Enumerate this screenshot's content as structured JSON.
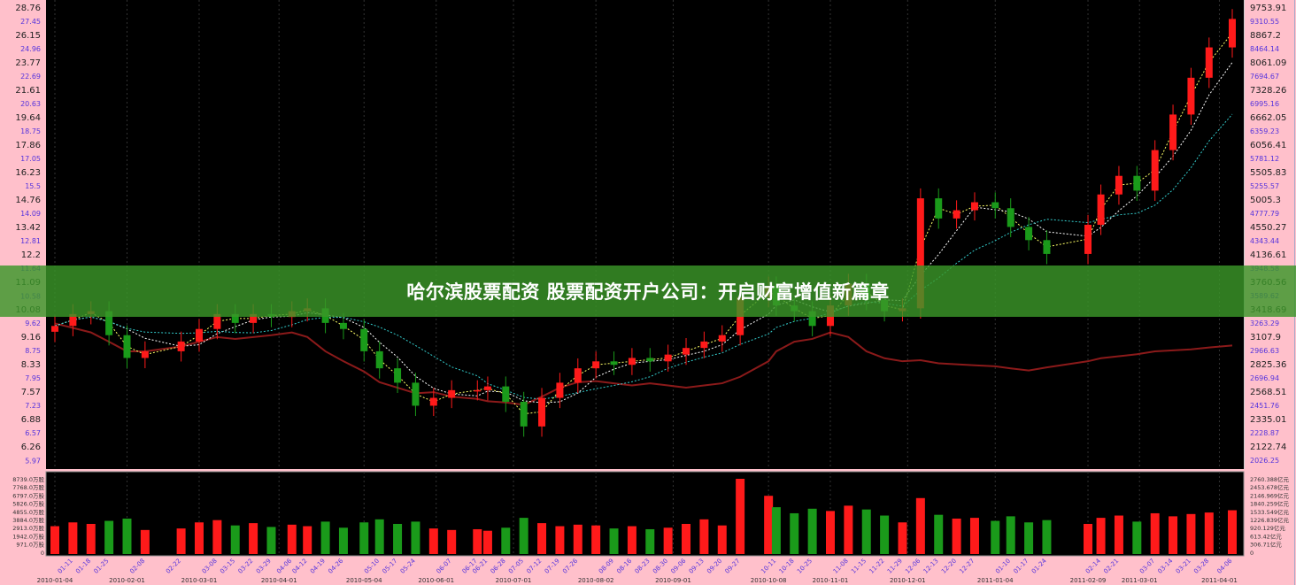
{
  "banner": {
    "title": "哈尔滨股票配资 股票配资开户公司：开启财富增值新篇章"
  },
  "colors": {
    "up": "#ff1a1a",
    "down": "#1a9a1a",
    "index": "#8b1a1a",
    "background": "#000000",
    "axis_bg": "#ffc0cb",
    "tick_major": "#222222",
    "tick_minor": "#5533dd",
    "banner": "#3a9628"
  },
  "chart_data": [
    {
      "type": "candlestick",
      "scale": "log",
      "left_axis_ticks": [
        "28.76",
        "27.45",
        "26.15",
        "24.96",
        "23.77",
        "22.69",
        "21.61",
        "20.63",
        "19.64",
        "18.75",
        "17.86",
        "17.05",
        "16.23",
        "15.5",
        "14.76",
        "14.09",
        "13.42",
        "12.81",
        "12.2",
        "11.64",
        "11.09",
        "10.58",
        "10.08",
        "9.62",
        "9.16",
        "8.75",
        "8.33",
        "7.95",
        "7.57",
        "7.23",
        "6.88",
        "6.57",
        "6.26",
        "5.97"
      ],
      "right_axis_ticks": [
        "9753.91",
        "9310.55",
        "8867.2",
        "8464.14",
        "8061.09",
        "7694.67",
        "7328.26",
        "6995.16",
        "6662.05",
        "6359.23",
        "6056.41",
        "5781.12",
        "5505.83",
        "5255.57",
        "5005.3",
        "4777.79",
        "4550.27",
        "4343.44",
        "4136.61",
        "3948.58",
        "3760.56",
        "3589.62",
        "3418.69",
        "3263.29",
        "3107.9",
        "2966.63",
        "2825.36",
        "2696.94",
        "2568.51",
        "2451.76",
        "2335.01",
        "2228.87",
        "2122.74",
        "2026.25"
      ],
      "ylim": [
        5.97,
        28.76
      ],
      "dates": [
        "2010-01-04",
        "2010-01-11",
        "2010-01-18",
        "2010-01-25",
        "2010-02-01",
        "2010-02-08",
        "2010-02-22",
        "2010-03-01",
        "2010-03-08",
        "2010-03-15",
        "2010-03-22",
        "2010-03-29",
        "2010-04-06",
        "2010-04-12",
        "2010-04-19",
        "2010-04-26",
        "2010-05-04",
        "2010-05-10",
        "2010-05-17",
        "2010-05-24",
        "2010-05-31",
        "2010-06-07",
        "2010-06-17",
        "2010-06-21",
        "2010-06-28",
        "2010-07-05",
        "2010-07-12",
        "2010-07-19",
        "2010-07-26",
        "2010-08-02",
        "2010-08-09",
        "2010-08-16",
        "2010-08-23",
        "2010-08-30",
        "2010-09-06",
        "2010-09-13",
        "2010-09-20",
        "2010-09-27",
        "2010-10-08",
        "2010-10-11",
        "2010-10-18",
        "2010-10-25",
        "2010-11-01",
        "2010-11-08",
        "2010-11-15",
        "2010-11-22",
        "2010-11-29",
        "2010-12-06",
        "2010-12-13",
        "2010-12-20",
        "2010-12-27",
        "2011-01-04",
        "2011-01-10",
        "2011-01-17",
        "2011-01-24",
        "2011-02-09",
        "2011-02-14",
        "2011-02-21",
        "2011-02-28",
        "2011-03-07",
        "2011-03-14",
        "2011-03-21",
        "2011-03-28",
        "2011-04-06"
      ],
      "close": [
        9.5,
        9.9,
        10.0,
        9.2,
        8.5,
        8.7,
        9.0,
        9.4,
        9.9,
        9.6,
        9.9,
        9.8,
        10.0,
        10.1,
        9.6,
        9.4,
        8.7,
        8.2,
        7.8,
        7.2,
        7.4,
        7.6,
        7.6,
        7.7,
        7.3,
        6.7,
        7.4,
        7.8,
        8.2,
        8.4,
        8.3,
        8.5,
        8.4,
        8.6,
        8.8,
        9.0,
        9.2,
        10.5,
        10.9,
        10.2,
        10.0,
        9.5,
        10.2,
        11.0,
        10.4,
        10.0,
        10.1,
        14.8,
        13.8,
        14.2,
        14.6,
        14.3,
        13.4,
        12.8,
        12.2,
        13.5,
        15.0,
        16.0,
        15.2,
        17.5,
        19.8,
        22.5,
        25.0,
        27.6
      ],
      "index_close": [
        3250,
        3200,
        3150,
        3050,
        2950,
        2950,
        3000,
        3050,
        3100,
        3080,
        3100,
        3120,
        3150,
        3100,
        2950,
        2850,
        2750,
        2650,
        2600,
        2550,
        2560,
        2520,
        2500,
        2480,
        2470,
        2450,
        2520,
        2600,
        2650,
        2660,
        2640,
        2620,
        2640,
        2620,
        2600,
        2620,
        2640,
        2700,
        2850,
        2950,
        3050,
        3080,
        3150,
        3100,
        2950,
        2880,
        2850,
        2860,
        2830,
        2820,
        2810,
        2800,
        2780,
        2760,
        2790,
        2850,
        2880,
        2900,
        2920,
        2950,
        2960,
        2970,
        2990,
        3010
      ],
      "volume": [
        2500,
        3000,
        2800,
        3200,
        3500,
        2000,
        2200,
        3000,
        3300,
        2600,
        2900,
        2400,
        2700,
        2500,
        3100,
        2300,
        3000,
        3400,
        2800,
        3100,
        2200,
        2000,
        2100,
        1900,
        2300,
        3600,
        2900,
        2500,
        2700,
        2600,
        2200,
        2500,
        2100,
        2300,
        2800,
        3400,
        2600,
        8739,
        6500,
        5000,
        4200,
        4800,
        4500,
        5200,
        4700,
        3900,
        3000,
        6200,
        4000,
        3500,
        3600,
        3200,
        3800,
        3000,
        3300,
        2800,
        3600,
        3900,
        3100,
        4200,
        3800,
        4100,
        4300,
        4600
      ]
    },
    {
      "type": "bar",
      "volume_axis_left": [
        "8739.0万股",
        "7768.0万股",
        "6797.0万股",
        "5826.0万股",
        "4855.0万股",
        "3884.0万股",
        "2913.0万股",
        "1942.0万股",
        "971.0万股",
        "0"
      ],
      "volume_axis_right": [
        "2760.388亿元",
        "2453.678亿元",
        "2146.969亿元",
        "1840.259亿元",
        "1533.549亿元",
        "1226.839亿元",
        "920.129亿元",
        "613.42亿元",
        "306.71亿元",
        "0"
      ],
      "x_ticks": [
        "2010-01-04",
        "01-11",
        "01-18",
        "01-25",
        "2010-02-01",
        "02-08",
        "02-22",
        "2010-03-01",
        "03-08",
        "03-15",
        "03-22",
        "03-29",
        "2010-04-01",
        "04-06",
        "04-12",
        "04-19",
        "04-26",
        "2010-05-04",
        "05-10",
        "05-17",
        "05-24",
        "2010-06-01",
        "06-07",
        "06-17",
        "06-21",
        "06-28",
        "2010-07-01",
        "07-05",
        "07-12",
        "07-19",
        "07-26",
        "2010-08-02",
        "08-09",
        "08-16",
        "08-23",
        "08-30",
        "2010-09-01",
        "09-06",
        "09-13",
        "09-20",
        "09-27",
        "2010-10-08",
        "10-11",
        "10-18",
        "10-25",
        "2010-11-01",
        "11-08",
        "11-15",
        "11-22",
        "11-29",
        "2010-12-01",
        "12-06",
        "12-13",
        "12-20",
        "12-27",
        "2011-01-04",
        "01-10",
        "01-17",
        "01-24",
        "2011-02-09",
        "02-14",
        "02-21",
        "2011-03-01",
        "03-07",
        "03-14",
        "03-21",
        "03-28",
        "2011-04-01",
        "04-06"
      ]
    }
  ]
}
